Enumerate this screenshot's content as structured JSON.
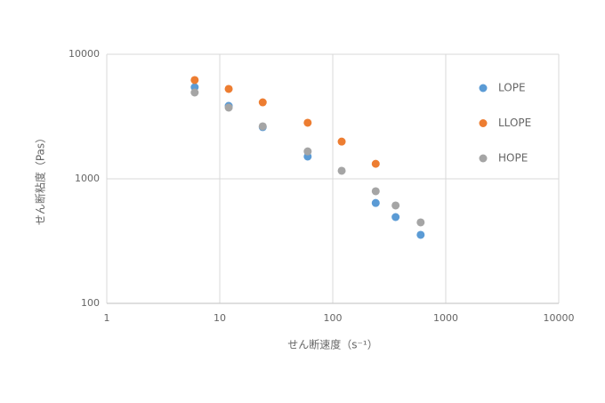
{
  "chart_data": {
    "type": "scatter",
    "x_label": "せん断速度（s⁻¹）",
    "y_label": "せん断粘度（Pas）",
    "xlim": [
      1,
      10000
    ],
    "xticks": [
      1,
      10,
      100,
      1000,
      10000
    ],
    "ylim": [
      100,
      10000
    ],
    "yticks": [
      100,
      1000,
      10000
    ],
    "xscale": "log",
    "yscale": "log",
    "grid": true,
    "legend": "right",
    "series": [
      {
        "name": "LOPE",
        "color": "#5b9bd5",
        "x": [
          6,
          12,
          24,
          60,
          240,
          360,
          600
        ],
        "values": [
          5440,
          3850,
          2600,
          1510,
          640,
          493,
          355
        ]
      },
      {
        "name": "LLOPE",
        "color": "#ed7d31",
        "x": [
          6,
          12,
          24,
          60,
          120,
          240
        ],
        "values": [
          6210,
          5270,
          4110,
          2820,
          1990,
          1320
        ]
      },
      {
        "name": "HOPE",
        "color": "#a5a5a5",
        "x": [
          6,
          12,
          24,
          60,
          120,
          240,
          360,
          600
        ],
        "values": [
          4930,
          3730,
          2640,
          1660,
          1160,
          795,
          611,
          447
        ]
      }
    ]
  }
}
